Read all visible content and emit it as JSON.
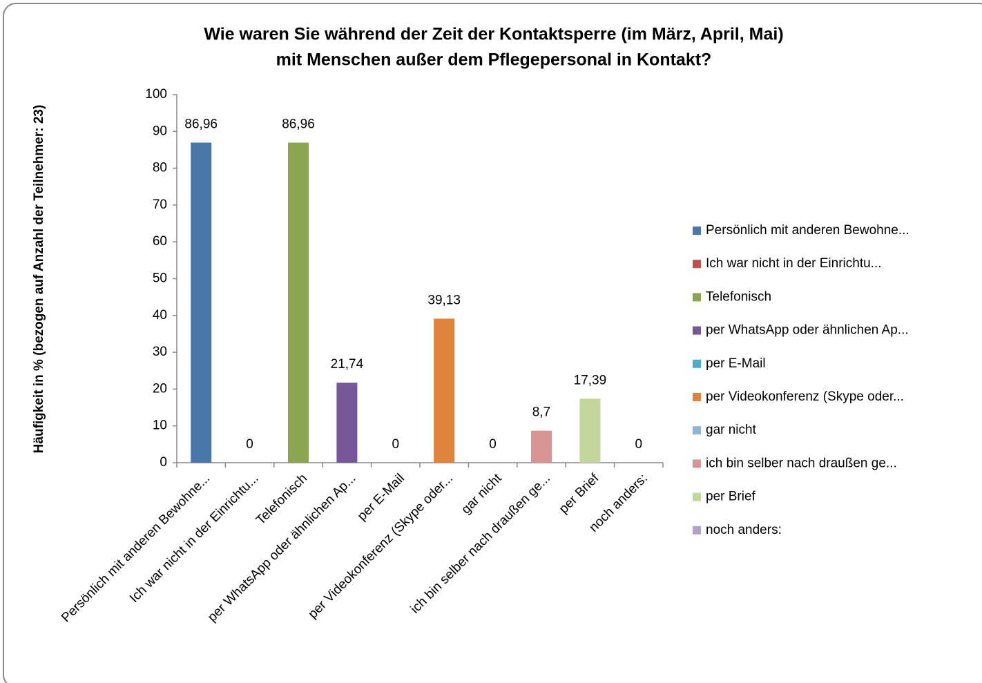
{
  "chart_data": {
    "type": "bar",
    "title": [
      "Wie waren Sie während der Zeit der Kontaktsperre (im März, April, Mai)",
      "mit Menschen außer dem Pflegepersonal in Kontakt?"
    ],
    "y_label": "Häufigkeit in % (bezogen auf Anzahl der Teilnehmer: 23)",
    "categories": [
      "Persönlich mit anderen Bewohne...",
      "Ich war nicht in der Einrichtu...",
      "Telefonisch",
      "per WhatsApp oder ähnlichen Ap...",
      "per E-Mail",
      "per Videokonferenz (Skype oder...",
      "gar nicht",
      "ich bin selber nach draußen ge...",
      "per Brief",
      "noch anders:"
    ],
    "values": [
      86.96,
      0,
      86.96,
      21.74,
      0,
      39.13,
      0,
      8.7,
      17.39,
      0
    ],
    "value_labels": [
      "86,96",
      "0",
      "86,96",
      "21,74",
      "0",
      "39,13",
      "0",
      "8,7",
      "17,39",
      "0"
    ],
    "colors": [
      "#4a77aa",
      "#c0504d",
      "#8aa64e",
      "#76589a",
      "#4aacc6",
      "#e0843c",
      "#95b3d7",
      "#d99594",
      "#c3d69b",
      "#b3a2c7"
    ],
    "ylim": [
      0,
      100
    ],
    "yticks": [
      0,
      10,
      20,
      30,
      40,
      50,
      60,
      70,
      80,
      90,
      100
    ],
    "grid": false,
    "legend": "right"
  }
}
